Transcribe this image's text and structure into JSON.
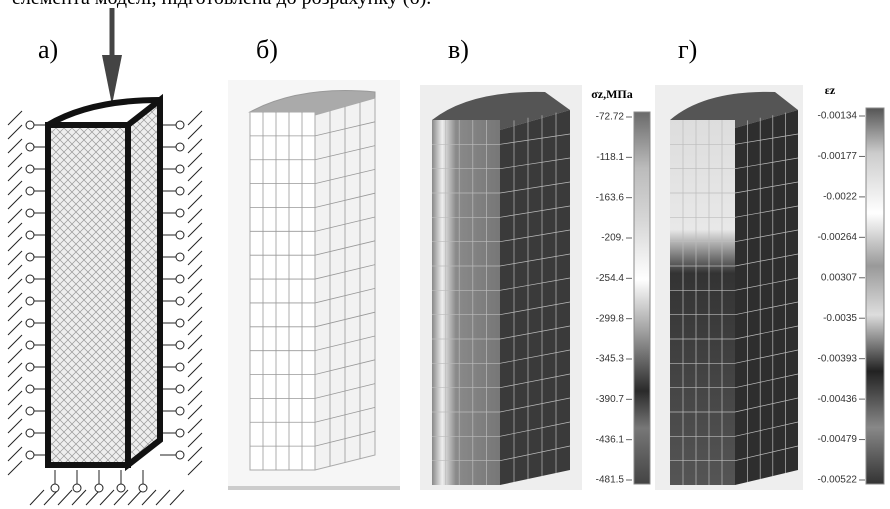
{
  "caption": "елемента моделі, підготовлена до розрахунку (б).",
  "panels": [
    {
      "label": "а)"
    },
    {
      "label": "б)"
    },
    {
      "label": "в)",
      "legend_title": "σz,МПа",
      "legend_ticks": [
        "-72.72",
        "-118.1",
        "-163.6",
        "-209.",
        "-254.4",
        "-299.8",
        "-345.3",
        "-390.7",
        "-436.1",
        "-481.5"
      ]
    },
    {
      "label": "г)",
      "legend_title": "εz",
      "legend_ticks": [
        "-0.00134",
        "-0.00177",
        "-0.0022",
        "-0.00264",
        "0.00307",
        "-0.0035",
        "-0.00393",
        "-0.00436",
        "-0.00479",
        "-0.00522"
      ]
    }
  ]
}
